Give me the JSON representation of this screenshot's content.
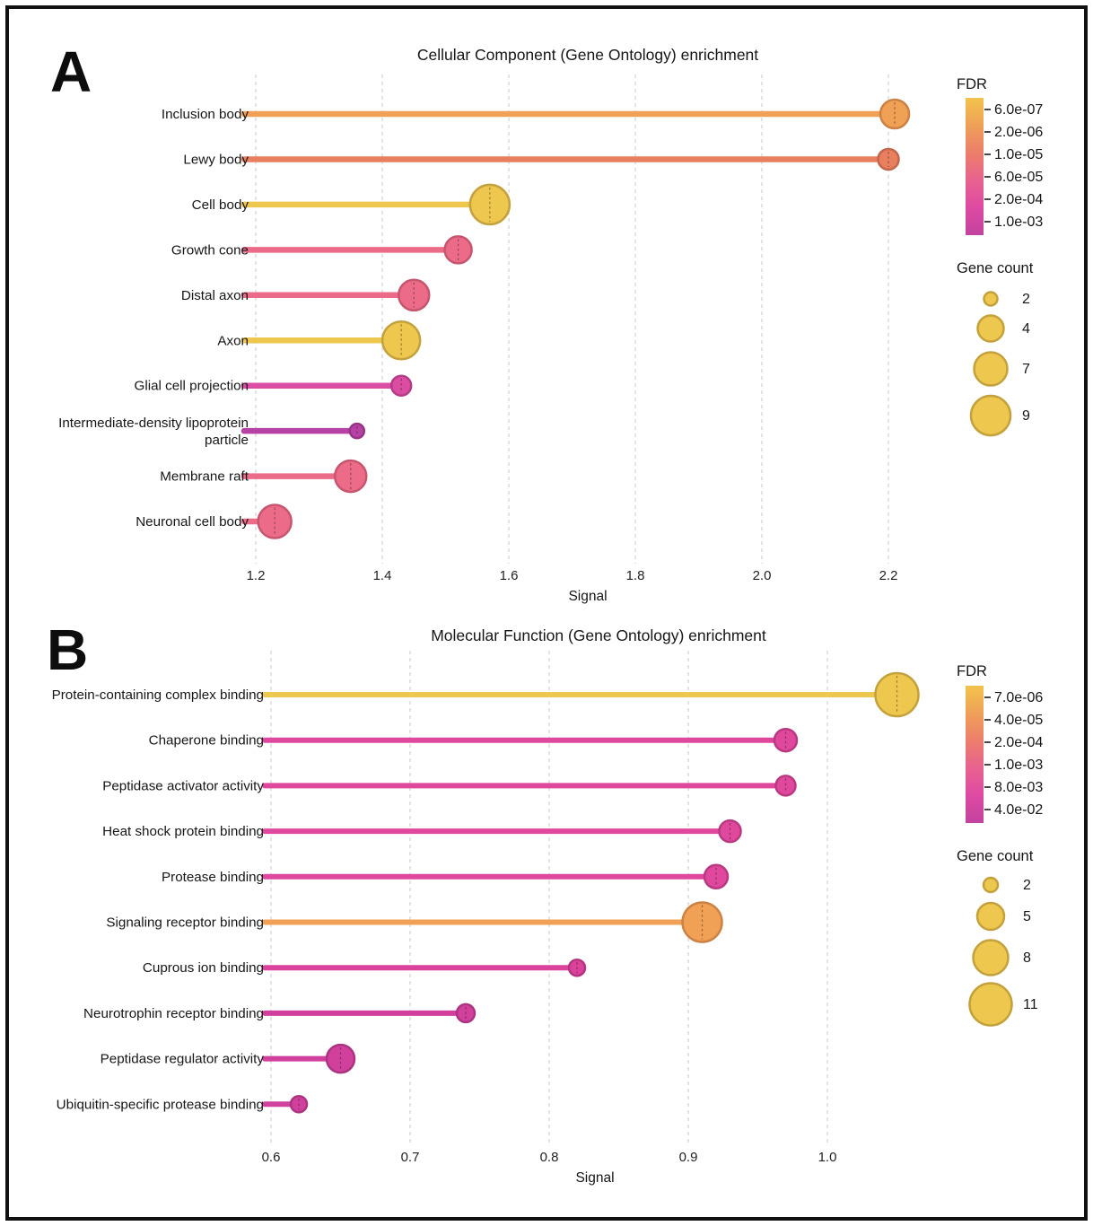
{
  "figure": {
    "background": "#ffffff",
    "border_color": "#111111"
  },
  "chart_data": [
    {
      "type": "lollipop",
      "panel_label": "A",
      "title": "Cellular Component (Gene Ontology) enrichment",
      "xlabel": "Signal",
      "x_range": [
        1.2,
        2.2
      ],
      "x_ticks": [
        "1.2",
        "1.4",
        "1.6",
        "1.8",
        "2.0",
        "2.2"
      ],
      "grid": true,
      "legend_position": "right",
      "rows": [
        {
          "label": "Inclusion body",
          "signal": 2.21,
          "gene_count": 5,
          "fill": "#f0a155",
          "stroke": "#cb8244",
          "r": 16
        },
        {
          "label": "Lewy body",
          "signal": 2.2,
          "gene_count": 3,
          "fill": "#e8805f",
          "stroke": "#c3664b",
          "r": 11.5
        },
        {
          "label": "Cell body",
          "signal": 1.57,
          "gene_count": 9,
          "fill": "#eec84e",
          "stroke": "#c3a13c",
          "r": 22
        },
        {
          "label": "Growth cone",
          "signal": 1.52,
          "gene_count": 4,
          "fill": "#ec6b88",
          "stroke": "#c6556e",
          "r": 15
        },
        {
          "label": "Distal axon",
          "signal": 1.45,
          "gene_count": 6,
          "fill": "#ec6b88",
          "stroke": "#c6556e",
          "r": 17
        },
        {
          "label": "Axon",
          "signal": 1.43,
          "gene_count": 8,
          "fill": "#eec84e",
          "stroke": "#c3a13c",
          "r": 21
        },
        {
          "label": "Glial cell projection",
          "signal": 1.43,
          "gene_count": 3,
          "fill": "#da4da3",
          "stroke": "#b23c85",
          "r": 11
        },
        {
          "label": [
            "Intermediate-density lipoprotein",
            "particle"
          ],
          "signal": 1.36,
          "gene_count": 2,
          "fill": "#b742a6",
          "stroke": "#953587",
          "r": 8
        },
        {
          "label": "Membrane raft",
          "signal": 1.35,
          "gene_count": 6,
          "fill": "#ec6b88",
          "stroke": "#c6556e",
          "r": 17.5
        },
        {
          "label": "Neuronal cell body",
          "signal": 1.23,
          "gene_count": 7,
          "fill": "#ec6b88",
          "stroke": "#c6556e",
          "r": 18.5
        }
      ],
      "fdr_legend": {
        "title": "FDR",
        "labels": [
          "6.0e-07",
          "2.0e-06",
          "1.0e-05",
          "6.0e-05",
          "2.0e-04",
          "1.0e-03"
        ],
        "gradient": [
          "#f2c44c",
          "#efa058",
          "#ec7e6a",
          "#e8628f",
          "#de4aa2",
          "#c2439f"
        ]
      },
      "count_legend": {
        "title": "Gene count",
        "items": [
          2,
          4,
          7,
          9
        ]
      }
    },
    {
      "type": "lollipop",
      "panel_label": "B",
      "title": "Molecular Function (Gene Ontology) enrichment",
      "xlabel": "Signal",
      "x_range": [
        0.6,
        1.0
      ],
      "x_ticks": [
        "0.6",
        "0.7",
        "0.8",
        "0.9",
        "1.0"
      ],
      "grid": true,
      "legend_position": "right",
      "rows": [
        {
          "label": "Protein-containing complex binding",
          "signal": 1.05,
          "gene_count": 11,
          "fill": "#eec84e",
          "stroke": "#c3a13c",
          "r": 24
        },
        {
          "label": "Chaperone binding",
          "signal": 0.97,
          "gene_count": 3,
          "fill": "#e0489d",
          "stroke": "#b83980",
          "r": 12.5
        },
        {
          "label": "Peptidase activator activity",
          "signal": 0.97,
          "gene_count": 3,
          "fill": "#e0489d",
          "stroke": "#b83980",
          "r": 11
        },
        {
          "label": "Heat shock protein binding",
          "signal": 0.93,
          "gene_count": 3,
          "fill": "#e0489d",
          "stroke": "#b83980",
          "r": 12
        },
        {
          "label": "Protease binding",
          "signal": 0.92,
          "gene_count": 3,
          "fill": "#e0489d",
          "stroke": "#b83980",
          "r": 13
        },
        {
          "label": "Signaling receptor binding",
          "signal": 0.91,
          "gene_count": 9,
          "fill": "#f0a155",
          "stroke": "#cb8244",
          "r": 22
        },
        {
          "label": "Cuprous ion binding",
          "signal": 0.82,
          "gene_count": 2,
          "fill": "#db429c",
          "stroke": "#b4357f",
          "r": 9
        },
        {
          "label": "Neurotrophin receptor binding",
          "signal": 0.74,
          "gene_count": 2,
          "fill": "#d2409e",
          "stroke": "#ab3481",
          "r": 10
        },
        {
          "label": "Peptidase regulator activity",
          "signal": 0.65,
          "gene_count": 5,
          "fill": "#d2409e",
          "stroke": "#ab3481",
          "r": 15.5
        },
        {
          "label": "Ubiquitin-specific protease binding",
          "signal": 0.62,
          "gene_count": 2,
          "fill": "#d2409e",
          "stroke": "#ab3481",
          "r": 9
        }
      ],
      "fdr_legend": {
        "title": "FDR",
        "labels": [
          "7.0e-06",
          "4.0e-05",
          "2.0e-04",
          "1.0e-03",
          "8.0e-03",
          "4.0e-02"
        ],
        "gradient": [
          "#f2c44c",
          "#efa058",
          "#ec7e6a",
          "#e8628f",
          "#de4aa2",
          "#c2439f"
        ]
      },
      "count_legend": {
        "title": "Gene count",
        "items": [
          2,
          5,
          8,
          11
        ]
      }
    }
  ]
}
